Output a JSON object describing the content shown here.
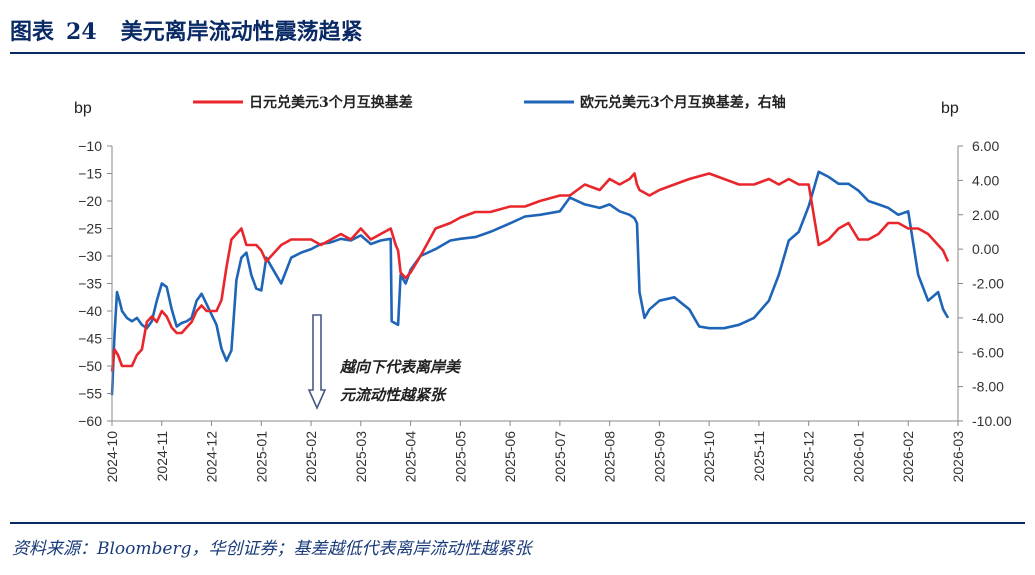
{
  "figure": {
    "label": "图表",
    "number": "24",
    "title": "美元离岸流动性震荡趋紧",
    "source": "资料来源：Bloomberg，华创证券；基差越低代表离岸流动性越紧张"
  },
  "chart_data": {
    "type": "line",
    "left_unit": "bp",
    "right_unit": "bp",
    "left_ylim": [
      -60,
      -10
    ],
    "right_ylim": [
      -10,
      6
    ],
    "left_ticks": [
      "−10",
      "−15",
      "−20",
      "−25",
      "−30",
      "−35",
      "−40",
      "−45",
      "−50",
      "−55",
      "−60"
    ],
    "right_ticks": [
      "6.00",
      "4.00",
      "2.00",
      "0.00",
      "-2.00",
      "-4.00",
      "-6.00",
      "-8.00",
      "-10.00"
    ],
    "x_ticks": [
      "2024-10",
      "2024-11",
      "2024-12",
      "2025-01",
      "2025-02",
      "2025-03",
      "2025-04",
      "2025-05",
      "2025-06",
      "2025-07",
      "2025-08",
      "2025-09",
      "2025-10",
      "2025-11",
      "2025-12",
      "2026-01",
      "2026-02",
      "2026-03"
    ],
    "annotation": [
      "越向下代表离岸美",
      "元流动性越紧张"
    ],
    "colors": {
      "jpy": "#e8262c",
      "eur": "#1f65b7",
      "arrow": "#4a5a86"
    },
    "series": [
      {
        "name": "日元兑美元3个月互换基差",
        "axis": "left",
        "x": [
          0.0,
          0.05,
          0.12,
          0.2,
          0.3,
          0.4,
          0.5,
          0.6,
          0.7,
          0.8,
          0.9,
          1.0,
          1.1,
          1.2,
          1.3,
          1.4,
          1.5,
          1.6,
          1.7,
          1.8,
          1.9,
          2.0,
          2.1,
          2.2,
          2.3,
          2.4,
          2.5,
          2.6,
          2.7,
          2.8,
          2.9,
          3.0,
          3.1,
          3.2,
          3.4,
          3.6,
          3.8,
          4.0,
          4.2,
          4.4,
          4.6,
          4.8,
          5.0,
          5.2,
          5.4,
          5.6,
          5.7,
          5.75,
          5.8,
          5.9,
          6.0,
          6.2,
          6.5,
          6.8,
          7.0,
          7.3,
          7.6,
          8.0,
          8.3,
          8.6,
          9.0,
          9.2,
          9.5,
          9.8,
          10.0,
          10.2,
          10.4,
          10.5,
          10.55,
          10.6,
          10.8,
          11.0,
          11.3,
          11.6,
          12.0,
          12.3,
          12.6,
          12.9,
          13.2,
          13.4,
          13.6,
          13.8,
          14.0,
          14.2,
          14.4,
          14.6,
          14.8,
          15.0,
          15.2,
          15.4,
          15.6,
          15.8,
          16.0,
          16.2,
          16.4,
          16.6,
          16.7,
          16.8
        ],
        "values": [
          -51,
          -47,
          -48,
          -50,
          -50,
          -50,
          -48,
          -47,
          -42,
          -41,
          -42,
          -40,
          -41,
          -43,
          -44,
          -44,
          -43,
          -42,
          -40,
          -39,
          -40,
          -40,
          -40,
          -38,
          -32,
          -27,
          -26,
          -25,
          -28,
          -28,
          -28,
          -29,
          -31,
          -30,
          -28,
          -27,
          -27,
          -27,
          -28,
          -27,
          -26,
          -27,
          -25,
          -27,
          -26,
          -25,
          -28,
          -29,
          -33,
          -34,
          -33,
          -30,
          -25,
          -24,
          -23,
          -22,
          -22,
          -21,
          -21,
          -20,
          -19,
          -19,
          -17,
          -18,
          -16,
          -17,
          -16,
          -15,
          -17,
          -18,
          -19,
          -18,
          -17,
          -16,
          -15,
          -16,
          -17,
          -17,
          -16,
          -17,
          -16,
          -17,
          -17,
          -28,
          -27,
          -25,
          -24,
          -27,
          -27,
          -26,
          -24,
          -24,
          -25,
          -25,
          -26,
          -28,
          -29,
          -31
        ],
        "_note": "",
        "marker": "none"
      },
      {
        "name": "欧元兑美元3个月互换基差，右轴",
        "axis": "right",
        "x": [
          0.0,
          0.05,
          0.1,
          0.15,
          0.2,
          0.3,
          0.4,
          0.5,
          0.6,
          0.7,
          0.8,
          0.9,
          1.0,
          1.1,
          1.2,
          1.3,
          1.4,
          1.5,
          1.6,
          1.7,
          1.8,
          1.9,
          2.0,
          2.1,
          2.2,
          2.3,
          2.4,
          2.5,
          2.6,
          2.7,
          2.8,
          2.9,
          3.0,
          3.1,
          3.2,
          3.4,
          3.6,
          3.8,
          4.0,
          4.2,
          4.4,
          4.6,
          4.8,
          5.0,
          5.2,
          5.4,
          5.6,
          5.62,
          5.68,
          5.75,
          5.8,
          5.9,
          6.0,
          6.2,
          6.5,
          6.8,
          7.0,
          7.3,
          7.6,
          8.0,
          8.3,
          8.6,
          9.0,
          9.2,
          9.5,
          9.8,
          10.0,
          10.2,
          10.4,
          10.5,
          10.55,
          10.6,
          10.7,
          10.8,
          11.0,
          11.3,
          11.6,
          11.8,
          12.0,
          12.3,
          12.6,
          12.9,
          13.2,
          13.4,
          13.6,
          13.8,
          14.0,
          14.2,
          14.4,
          14.6,
          14.8,
          15.0,
          15.2,
          15.4,
          15.6,
          15.8,
          16.0,
          16.2,
          16.4,
          16.6,
          16.7,
          16.8
        ],
        "values": [
          -8.5,
          -5,
          -2.5,
          -3,
          -3.6,
          -4,
          -4.2,
          -4,
          -4.4,
          -4.6,
          -4.2,
          -3,
          -2,
          -2.2,
          -3.5,
          -4.5,
          -4.3,
          -4.2,
          -4,
          -3,
          -2.6,
          -3.2,
          -3.8,
          -4.4,
          -5.8,
          -6.5,
          -5.9,
          -1.8,
          -0.5,
          -0.2,
          -1.5,
          -2.3,
          -2.4,
          -0.5,
          -1,
          -2,
          -0.5,
          -0.2,
          0,
          0.3,
          0.4,
          0.6,
          0.5,
          0.8,
          0.3,
          0.5,
          0.6,
          -4.2,
          -4.3,
          -4.4,
          -1.5,
          -2,
          -1.2,
          -0.4,
          0,
          0.5,
          0.6,
          0.7,
          1.0,
          1.5,
          1.9,
          2.0,
          2.2,
          3.0,
          2.6,
          2.4,
          2.6,
          2.2,
          2.0,
          1.8,
          1.5,
          -2.5,
          -4,
          -3.5,
          -3,
          -2.8,
          -3.5,
          -4.5,
          -4.6,
          -4.6,
          -4.4,
          -4,
          -3,
          -1.5,
          0.5,
          1.0,
          2.5,
          4.5,
          4.2,
          3.8,
          3.8,
          3.4,
          2.8,
          2.6,
          2.4,
          2.0,
          2.2,
          -1.5,
          -3.0,
          -2.5,
          -3.5,
          -4.0
        ],
        "marker": "none"
      }
    ]
  }
}
